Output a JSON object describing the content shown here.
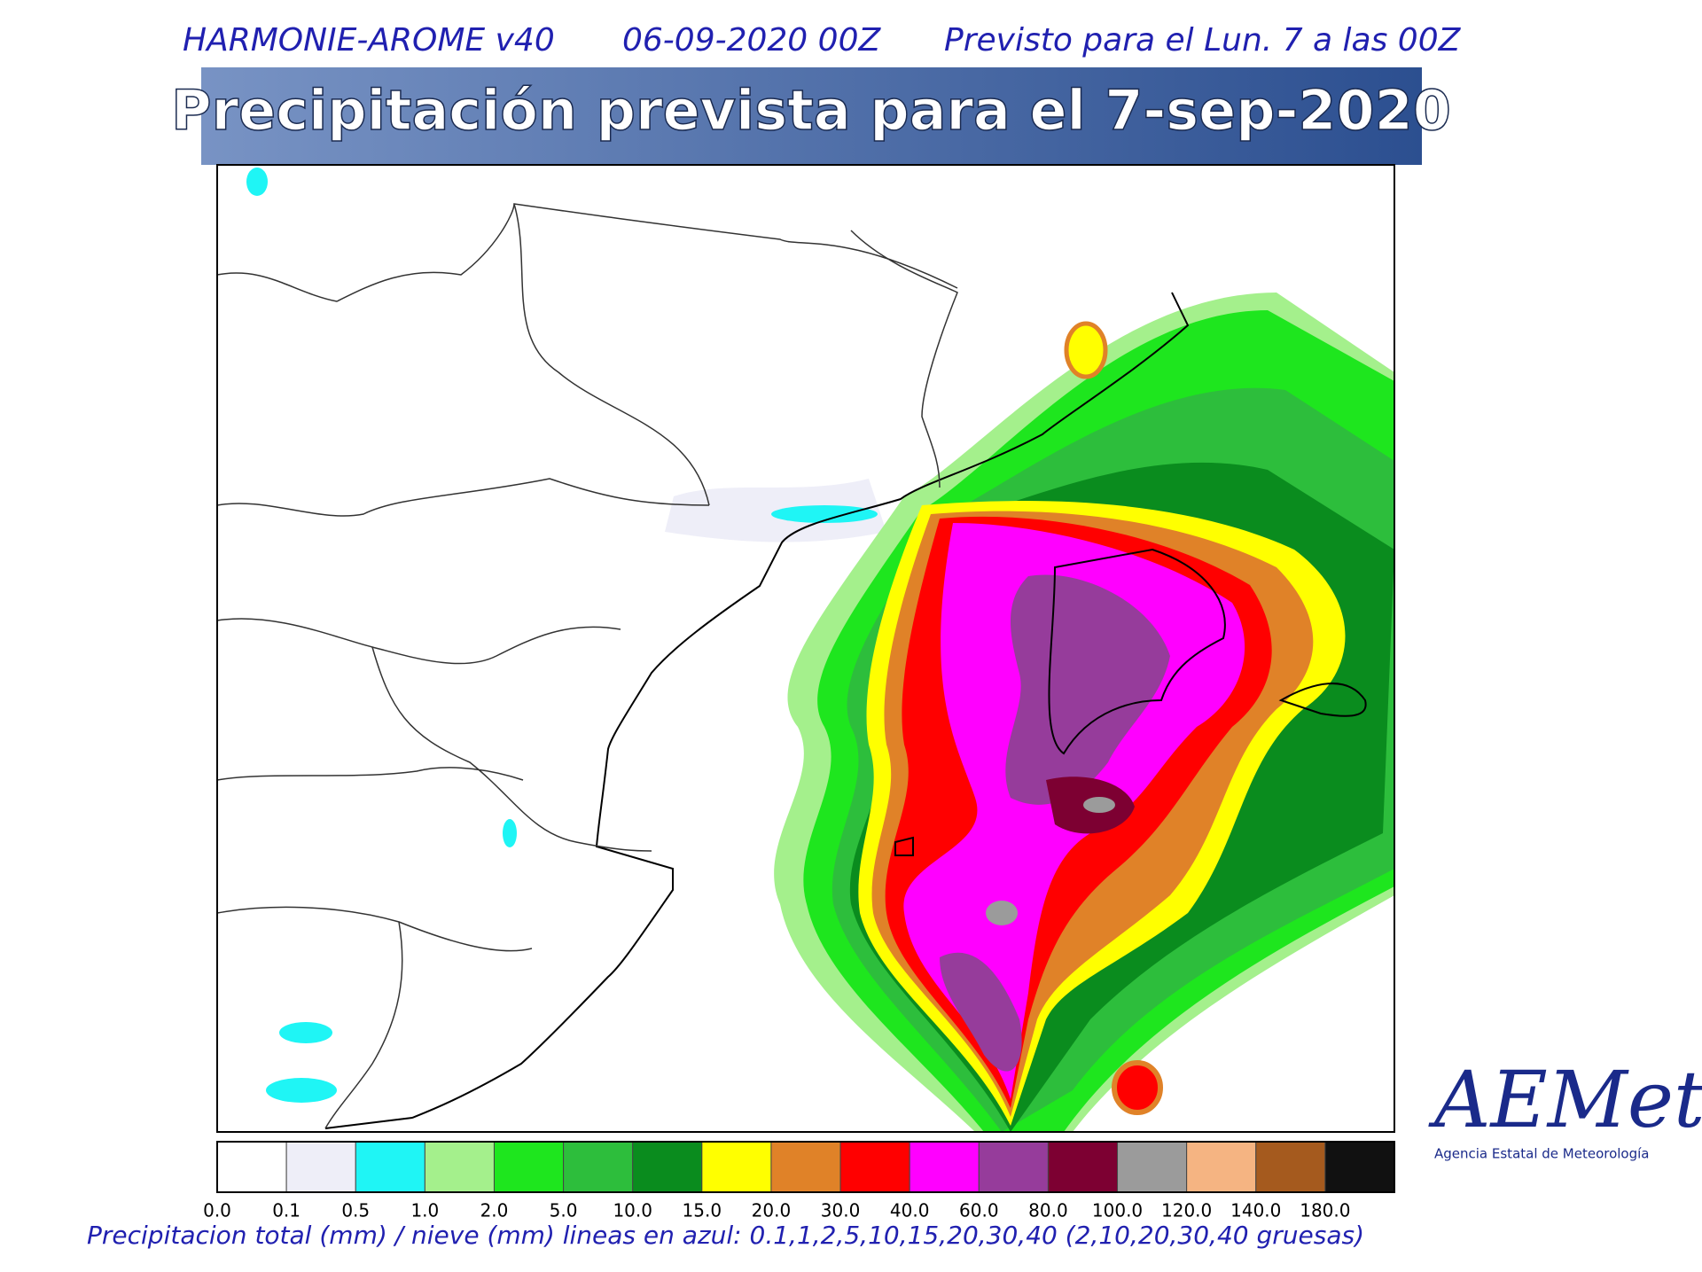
{
  "header": {
    "model": "HARMONIE-AROME v40",
    "run": "06-09-2020 00Z",
    "valid": "Previsto para el Lun. 7 a las 00Z"
  },
  "title": "Precipitación prevista para el 7-sep-2020",
  "legend": {
    "labels": [
      "0.0",
      "0.1",
      "0.5",
      "1.0",
      "2.0",
      "5.0",
      "10.0",
      "15.0",
      "20.0",
      "30.0",
      "40.0",
      "60.0",
      "80.0",
      "100.0",
      "120.0",
      "140.0",
      "180.0"
    ],
    "colors": [
      "#ffffff",
      "#eeeef8",
      "#1ff5f5",
      "#a4f08c",
      "#1ee61e",
      "#2dbe3c",
      "#0a8c1e",
      "#ffff00",
      "#e08228",
      "#ff0000",
      "#ff00ff",
      "#963c9b",
      "#7d0032",
      "#9b9b9b",
      "#f5b482",
      "#a55a1e",
      "#111111"
    ]
  },
  "footer": "Precipitacion total (mm) / nieve (mm) lineas en azul: 0.1,1,2,5,10,15,20,30,40  (2,10,20,30,40 gruesas)",
  "logo": {
    "name": "AEMet",
    "subtitle": "Agencia Estatal de Meteorología"
  }
}
